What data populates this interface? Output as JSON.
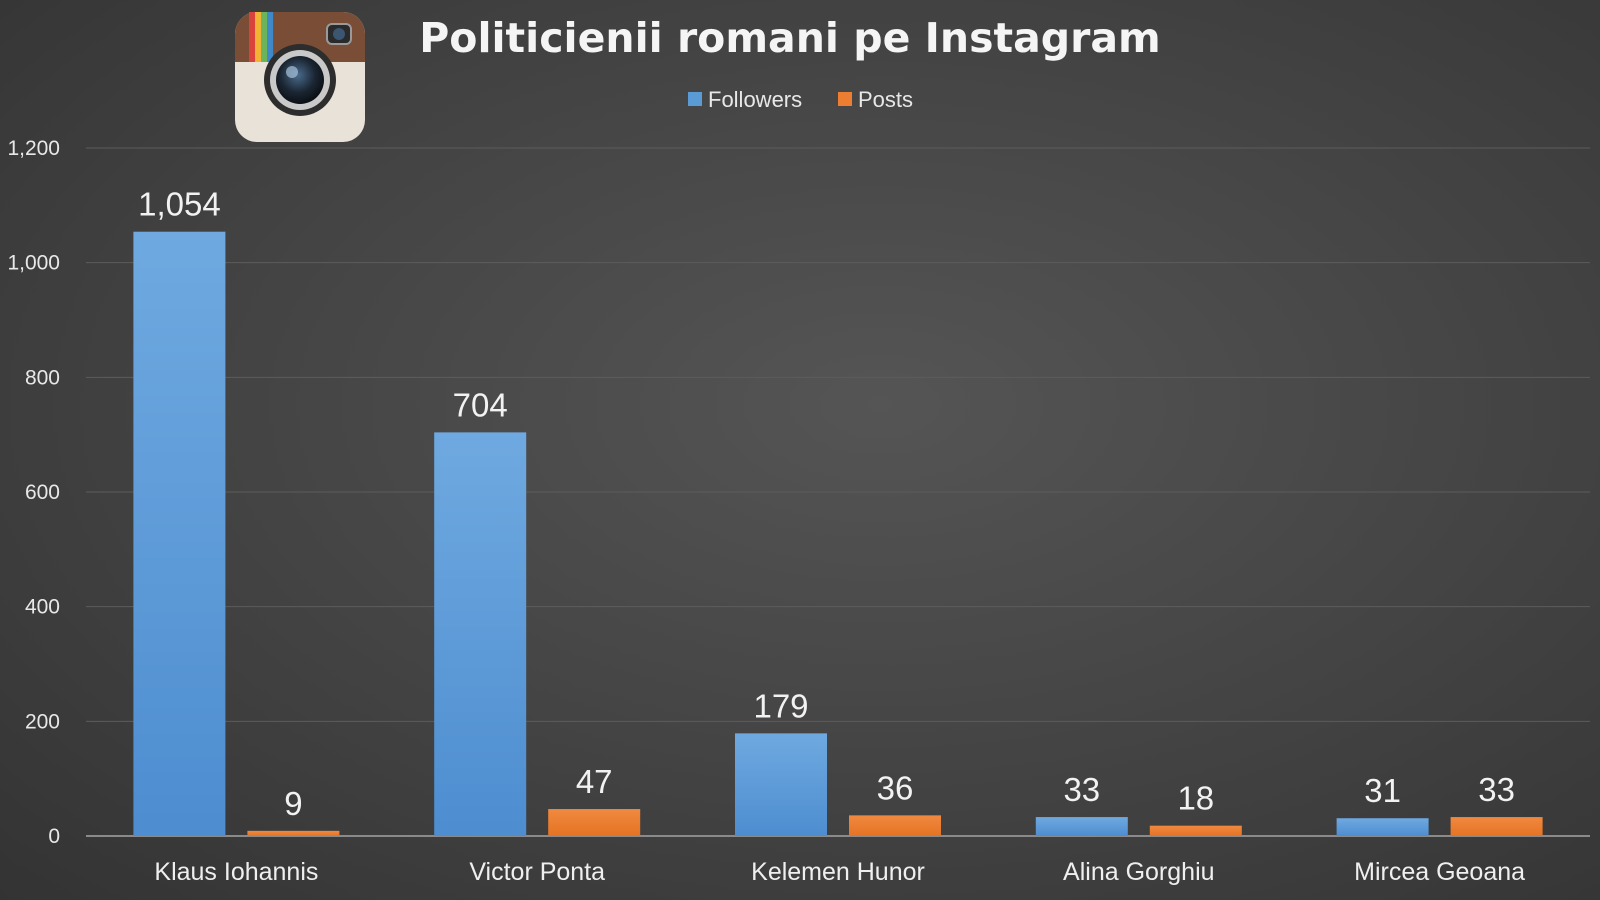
{
  "chart_data": {
    "type": "bar",
    "title": "Politicienii romani pe Instagram",
    "categories": [
      "Klaus Iohannis",
      "Victor Ponta",
      "Kelemen Hunor",
      "Alina Gorghiu",
      "Mircea Geoana"
    ],
    "series": [
      {
        "name": "Followers",
        "values": [
          1054,
          704,
          179,
          33,
          31
        ],
        "labels": [
          "1,054",
          "704",
          "179",
          "33",
          "31"
        ],
        "color": "#5b9bd5"
      },
      {
        "name": "Posts",
        "values": [
          9,
          47,
          36,
          18,
          33
        ],
        "labels": [
          "9",
          "47",
          "36",
          "18",
          "33"
        ],
        "color": "#ed7d31"
      }
    ],
    "ylim": [
      0,
      1200
    ],
    "yticks": [
      0,
      200,
      400,
      600,
      800,
      1000,
      1200
    ],
    "ytick_labels": [
      "0",
      "200",
      "400",
      "600",
      "800",
      "1,000",
      "1,200"
    ],
    "grid": true,
    "legend_position": "top-center",
    "xlabel": "",
    "ylabel": ""
  },
  "logo": {
    "icon": "instagram-camera-icon"
  }
}
